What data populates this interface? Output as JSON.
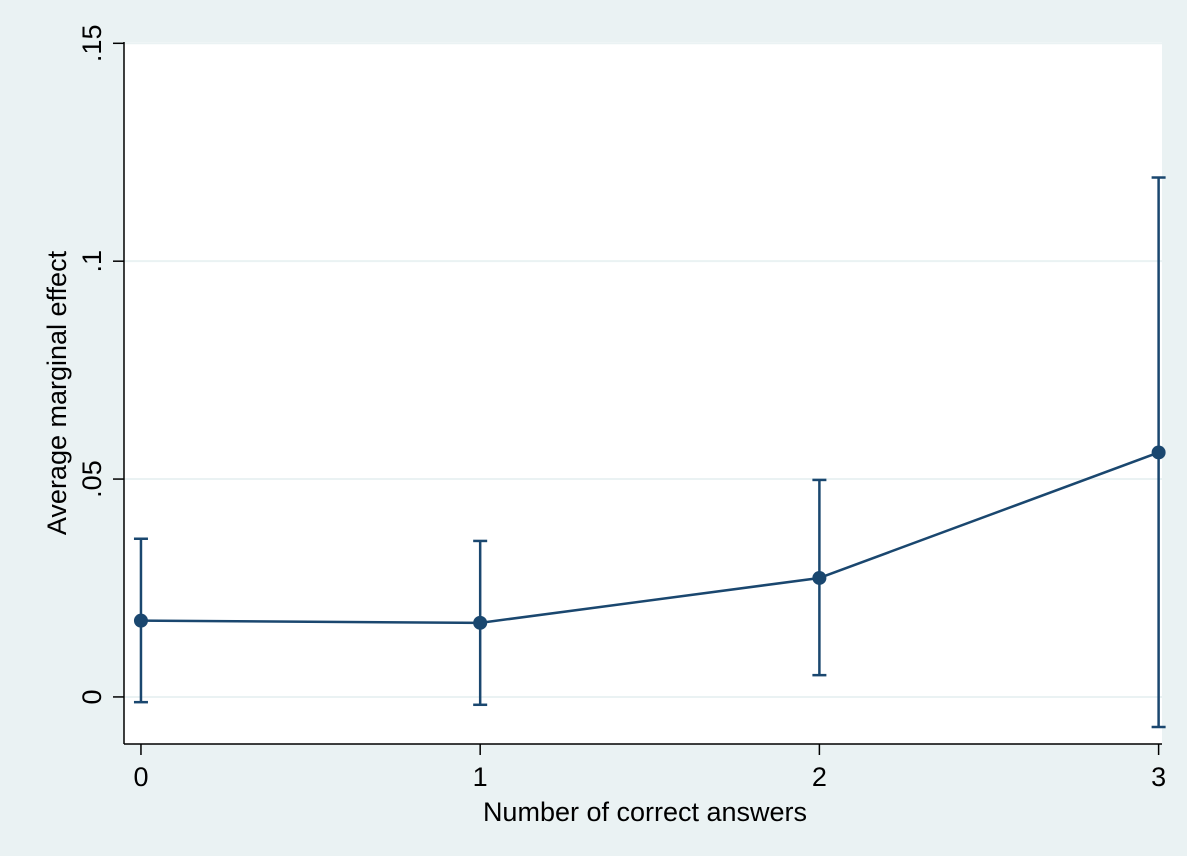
{
  "chart_data": {
    "type": "line",
    "title": "",
    "xlabel": "Number of correct answers",
    "ylabel": "Average marginal effect",
    "x_ticks": [
      "0",
      "1",
      "2",
      "3"
    ],
    "y_ticks": [
      {
        "value": 0,
        "label": "0"
      },
      {
        "value": 0.05,
        "label": ".05"
      },
      {
        "value": 0.1,
        "label": ".1"
      },
      {
        "value": 0.15,
        "label": ".15"
      }
    ],
    "xlim": [
      -0.05,
      3.01
    ],
    "ylim": [
      -0.0108,
      0.1503
    ],
    "grid": "horizontal",
    "error_bars": true,
    "series": [
      {
        "x": [
          0,
          1,
          2,
          3
        ],
        "values": [
          0.0175,
          0.017,
          0.0273,
          0.0561
        ],
        "ci_low": [
          -0.0012,
          -0.0018,
          0.005,
          -0.0069
        ],
        "ci_high": [
          0.0363,
          0.0358,
          0.0498,
          0.1192
        ]
      }
    ],
    "colors": {
      "series": "#1a476f",
      "frame_background": "#eaf2f3",
      "plot_background": "#ffffff",
      "gridline": "#eaf2f3",
      "axis": "#000000"
    }
  }
}
